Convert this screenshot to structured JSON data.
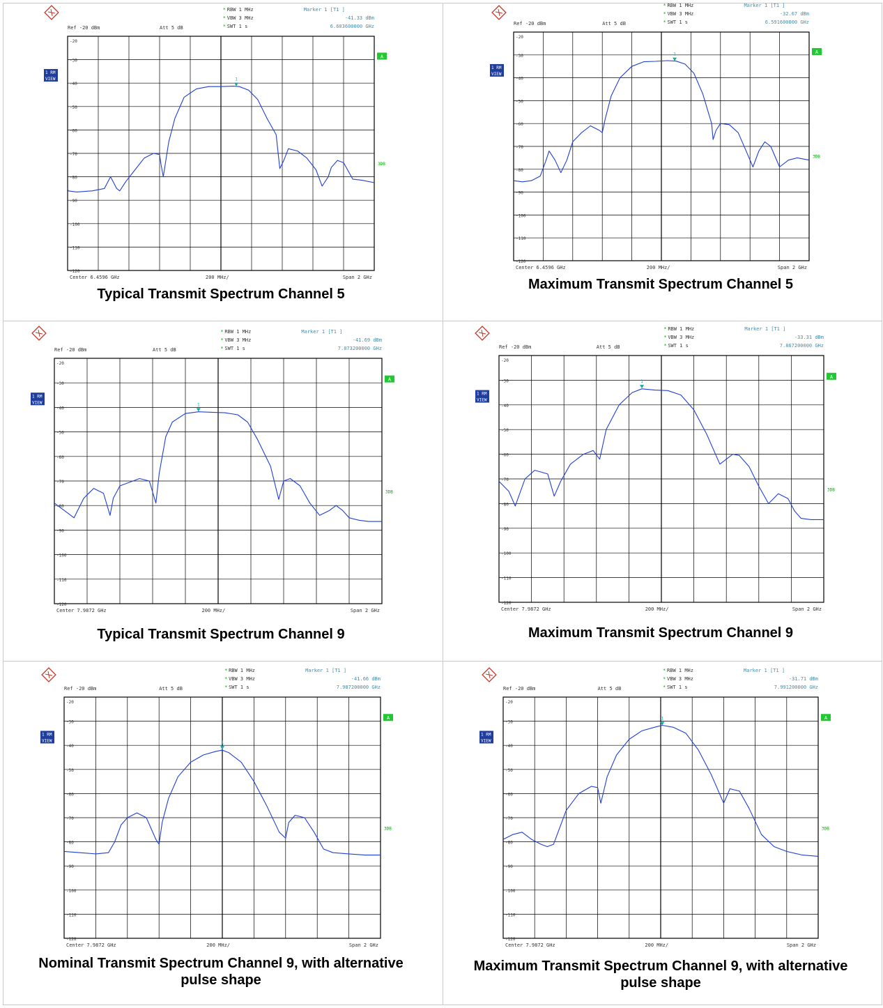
{
  "colors": {
    "trace": "#1f3fd6",
    "grid": "#000000",
    "marker": "#1aa6a6",
    "badge_green": "#22c832",
    "badge_blue": "#1e3d9c",
    "header_text": "#00aa00",
    "info_text": "#3b8fb0"
  },
  "chart_data": [
    {
      "type": "line",
      "title": "Typical Transmit Spectrum Channel 5",
      "settings": {
        "rbw": "RBW 1 MHz",
        "vbw": "VBW 3 MHz",
        "swt": "SWT 1 s",
        "ref": "Ref -20 dBm",
        "att": "Att 5 dB"
      },
      "marker": {
        "label": "Marker 1 [T1 ]",
        "level": "-41.33 dBm",
        "freq": "6.603600000 GHz",
        "num": "1",
        "x_div": 5.5,
        "y": -41.3
      },
      "badges": {
        "rm": "1 RM",
        "view": "VIEW",
        "a": "A",
        "db": "3DB"
      },
      "xlabels": {
        "center": "Center 6.4596 GHz",
        "per_div": "200 MHz/",
        "span": "Span 2 GHz"
      },
      "y_ticks": [
        "-20",
        "-30",
        "-40",
        "-50",
        "-60",
        "-70",
        "-80",
        "-90",
        "-100",
        "-110",
        "-120"
      ],
      "ylim": [
        -120,
        -20
      ],
      "x_divs": 10,
      "x": [
        0,
        0.02,
        0.3,
        0.8,
        1.2,
        1.4,
        1.6,
        1.7,
        1.9,
        2.2,
        2.5,
        2.8,
        3.0,
        3.05,
        3.12,
        3.3,
        3.5,
        3.8,
        4.2,
        4.6,
        5.0,
        5.4,
        5.6,
        5.9,
        6.2,
        6.5,
        6.8,
        6.92,
        7.05,
        7.2,
        7.5,
        7.8,
        8.1,
        8.3,
        8.5,
        8.6,
        8.8,
        9.0,
        9.3,
        9.6,
        10
      ],
      "series": [
        {
          "values": [
            -85,
            -86,
            -86.5,
            -86,
            -85,
            -80,
            -85,
            -86,
            -82,
            -77,
            -72,
            -70,
            -70.5,
            -75,
            -80,
            -65,
            -55,
            -46,
            -42.5,
            -41.5,
            -41.5,
            -41.3,
            -41.5,
            -43,
            -47,
            -55,
            -62,
            -76.5,
            -73,
            -68,
            -69,
            -72,
            -77,
            -84,
            -80,
            -76,
            -73,
            -74,
            -81,
            -81.5,
            -82.5
          ]
        }
      ]
    },
    {
      "type": "line",
      "title": "Maximum Transmit Spectrum Channel 5",
      "settings": {
        "rbw": "RBW 1 MHz",
        "vbw": "VBW 3 MHz",
        "swt": "SWT 1 s",
        "ref": "Ref -20 dBm",
        "att": "Att 5 dB"
      },
      "marker": {
        "label": "Marker 1 [T1 ]",
        "level": "-32.67 dBm",
        "freq": "6.591600000 GHz",
        "num": "1",
        "x_div": 5.45,
        "y": -32.7
      },
      "badges": {
        "rm": "1 RM",
        "view": "VIEW",
        "a": "A",
        "db": "3DB"
      },
      "xlabels": {
        "center": "Center 6.4596 GHz",
        "per_div": "200 MHz/",
        "span": "Span 2 GHz"
      },
      "y_ticks": [
        "-20",
        "-30",
        "-40",
        "-50",
        "-60",
        "-70",
        "-80",
        "-90",
        "-100",
        "-110",
        "-120"
      ],
      "ylim": [
        -120,
        -20
      ],
      "x_divs": 10,
      "x": [
        0,
        0.3,
        0.6,
        0.9,
        1.1,
        1.2,
        1.4,
        1.6,
        1.8,
        2.0,
        2.3,
        2.6,
        2.9,
        3.0,
        3.1,
        3.3,
        3.6,
        4.0,
        4.4,
        4.8,
        5.2,
        5.5,
        5.8,
        6.1,
        6.4,
        6.7,
        6.75,
        6.85,
        7.0,
        7.3,
        7.6,
        7.9,
        8.1,
        8.3,
        8.5,
        8.7,
        9.0,
        9.3,
        9.6,
        10
      ],
      "series": [
        {
          "values": [
            -85,
            -85.5,
            -85,
            -83,
            -76,
            -72,
            -76,
            -81.5,
            -76,
            -68,
            -64,
            -61,
            -63,
            -64,
            -58,
            -48,
            -40,
            -35,
            -33,
            -32.8,
            -32.5,
            -32.7,
            -34,
            -38,
            -47,
            -60,
            -67,
            -63,
            -60,
            -60.5,
            -64,
            -73,
            -79,
            -72,
            -68,
            -70,
            -79,
            -76,
            -75,
            -76
          ]
        }
      ]
    },
    {
      "type": "line",
      "title": "Typical Transmit Spectrum Channel 9",
      "settings": {
        "rbw": "RBW 1 MHz",
        "vbw": "VBW 3 MHz",
        "swt": "SWT 1 s",
        "ref": "Ref -20 dBm",
        "att": "Att 5 dB"
      },
      "marker": {
        "label": "Marker 1 [T1 ]",
        "level": "-41.69 dBm",
        "freq": "7.873200000 GHz",
        "num": "1",
        "x_div": 4.4,
        "y": -41.7
      },
      "badges": {
        "rm": "1 RM",
        "view": "VIEW",
        "a": "A",
        "db": "3DB"
      },
      "xlabels": {
        "center": "Center 7.9872 GHz",
        "per_div": "200 MHz/",
        "span": "Span 2 GHz"
      },
      "y_ticks": [
        "-20",
        "-30",
        "-40",
        "-50",
        "-60",
        "-70",
        "-80",
        "-90",
        "-100",
        "-110",
        "-120"
      ],
      "ylim": [
        -120,
        -20
      ],
      "x_divs": 10,
      "x": [
        0,
        0.3,
        0.6,
        0.9,
        1.2,
        1.5,
        1.7,
        1.8,
        2.0,
        2.2,
        2.6,
        2.9,
        3.1,
        3.2,
        3.4,
        3.6,
        4.0,
        4.4,
        4.8,
        5.2,
        5.6,
        5.9,
        6.2,
        6.6,
        6.85,
        7.0,
        7.2,
        7.5,
        7.8,
        8.1,
        8.4,
        8.6,
        8.8,
        9.0,
        9.3,
        9.6,
        10
      ],
      "series": [
        {
          "values": [
            -79,
            -82,
            -85,
            -77,
            -73,
            -75,
            -84,
            -77,
            -72,
            -71,
            -69,
            -70,
            -79,
            -67,
            -52,
            -46,
            -42.5,
            -41.8,
            -42,
            -42.2,
            -43,
            -46,
            -53,
            -64,
            -77.5,
            -70,
            -69,
            -72,
            -79,
            -84,
            -82,
            -80,
            -82,
            -85,
            -86,
            -86.5,
            -86.5
          ]
        }
      ]
    },
    {
      "type": "line",
      "title": "Maximum Transmit Spectrum Channel 9",
      "settings": {
        "rbw": "RBW 1 MHz",
        "vbw": "VBW 3 MHz",
        "swt": "SWT 1 s",
        "ref": "Ref -20 dBm",
        "att": "Att 5 dB"
      },
      "marker": {
        "label": "Marker 1 [T1 ]",
        "level": "-33.31 dBm",
        "freq": "7.867200000 GHz",
        "num": "1",
        "x_div": 4.4,
        "y": -33.3
      },
      "badges": {
        "rm": "1 RM",
        "view": "VIEW",
        "a": "A",
        "db": "3DB"
      },
      "xlabels": {
        "center": "Center 7.9872 GHz",
        "per_div": "200 MHz/",
        "span": "Span 2 GHz"
      },
      "y_ticks": [
        "-20",
        "-30",
        "-40",
        "-50",
        "-60",
        "-70",
        "-80",
        "-90",
        "-100",
        "-110",
        "-120"
      ],
      "ylim": [
        -120,
        -20
      ],
      "x_divs": 10,
      "x": [
        0,
        0.3,
        0.5,
        0.8,
        1.1,
        1.5,
        1.7,
        1.9,
        2.2,
        2.6,
        2.9,
        3.1,
        3.3,
        3.7,
        4.1,
        4.4,
        4.8,
        5.2,
        5.6,
        6.0,
        6.4,
        6.8,
        7.2,
        7.4,
        7.7,
        8.0,
        8.3,
        8.6,
        8.9,
        9.1,
        9.3,
        9.6,
        10
      ],
      "series": [
        {
          "values": [
            -71,
            -75,
            -81,
            -70,
            -66.5,
            -68,
            -77,
            -71,
            -64,
            -60,
            -58.5,
            -62,
            -50,
            -40,
            -35,
            -33.5,
            -34,
            -34.2,
            -36,
            -42,
            -52,
            -64,
            -60,
            -60.5,
            -65,
            -73,
            -80,
            -76,
            -78,
            -83,
            -86,
            -86.5,
            -86.5
          ]
        }
      ]
    },
    {
      "type": "line",
      "title": "Nominal Transmit Spectrum Channel 9, with alternative pulse shape",
      "settings": {
        "rbw": "RBW 1 MHz",
        "vbw": "VBW 3 MHz",
        "swt": "SWT 1 s",
        "ref": "Ref -20 dBm",
        "att": "Att 5 dB"
      },
      "marker": {
        "label": "Marker 1 [T1 ]",
        "level": "-41.66 dBm",
        "freq": "7.987200000 GHz",
        "num": "1",
        "x_div": 5.0,
        "y": -41.7
      },
      "badges": {
        "rm": "1 RM",
        "view": "VIEW",
        "a": "A",
        "db": "3DB"
      },
      "xlabels": {
        "center": "Center 7.9872 GHz",
        "per_div": "200 MHz/",
        "span": "Span 2 GHz"
      },
      "y_ticks": [
        "-20",
        "-30",
        "-40",
        "-50",
        "-60",
        "-70",
        "-80",
        "-90",
        "-100",
        "-110",
        "-120"
      ],
      "ylim": [
        -120,
        -20
      ],
      "x_divs": 10,
      "x": [
        0,
        0.5,
        1.0,
        1.4,
        1.6,
        1.8,
        2.0,
        2.3,
        2.6,
        2.9,
        3.0,
        3.1,
        3.3,
        3.6,
        4.0,
        4.4,
        4.8,
        5.0,
        5.2,
        5.6,
        6.0,
        6.4,
        6.8,
        7.0,
        7.1,
        7.3,
        7.6,
        7.9,
        8.2,
        8.5,
        9.0,
        9.5,
        10
      ],
      "series": [
        {
          "values": [
            -84,
            -84.5,
            -85,
            -84.5,
            -80,
            -73,
            -70,
            -68,
            -70,
            -79,
            -81,
            -72,
            -62,
            -53,
            -47,
            -44,
            -42.5,
            -42,
            -43,
            -47,
            -55,
            -65,
            -76,
            -78.5,
            -72,
            -69,
            -70,
            -76,
            -83,
            -84.5,
            -85,
            -85.5,
            -85.5
          ]
        }
      ]
    },
    {
      "type": "line",
      "title": "Maximum Transmit Spectrum Channel 9, with alternative pulse shape",
      "settings": {
        "rbw": "RBW 1 MHz",
        "vbw": "VBW 3 MHz",
        "swt": "SWT 1 s",
        "ref": "Ref -20 dBm",
        "att": "Att 5 dB"
      },
      "marker": {
        "label": "Marker 1 [T1 ]",
        "level": "-31.71 dBm",
        "freq": "7.991200000 GHz",
        "num": "1",
        "x_div": 5.05,
        "y": -31.7
      },
      "badges": {
        "rm": "1 RM",
        "view": "VIEW",
        "a": "A",
        "db": "3DB"
      },
      "xlabels": {
        "center": "Center 7.9872 GHz",
        "per_div": "200 MHz/",
        "span": "Span 2 GHz"
      },
      "y_ticks": [
        "-20",
        "-30",
        "-40",
        "-50",
        "-60",
        "-70",
        "-80",
        "-90",
        "-100",
        "-110",
        "-120"
      ],
      "ylim": [
        -120,
        -20
      ],
      "x_divs": 10,
      "x": [
        0,
        0.3,
        0.6,
        0.9,
        1.2,
        1.4,
        1.6,
        2.0,
        2.4,
        2.8,
        3.0,
        3.1,
        3.3,
        3.6,
        4.0,
        4.4,
        4.8,
        5.05,
        5.4,
        5.8,
        6.2,
        6.6,
        7.0,
        7.2,
        7.5,
        7.8,
        8.2,
        8.6,
        9.0,
        9.5,
        10
      ],
      "series": [
        {
          "values": [
            -79,
            -77,
            -76,
            -79,
            -81,
            -82,
            -81,
            -67,
            -60,
            -57,
            -57.5,
            -64,
            -53,
            -44,
            -37.5,
            -34,
            -32.5,
            -31.7,
            -32.5,
            -35,
            -42,
            -52,
            -64,
            -58,
            -59,
            -66,
            -77,
            -82,
            -84,
            -85.5,
            -86
          ]
        }
      ]
    }
  ]
}
